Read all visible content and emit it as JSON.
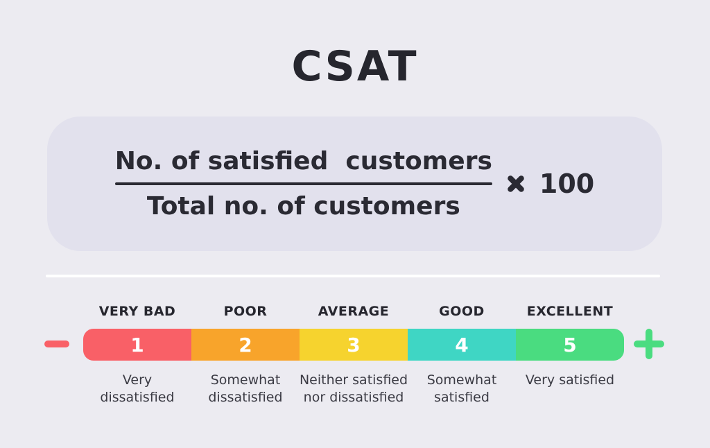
{
  "title": "CSAT",
  "formula": {
    "numerator": "No. of satisfied  customers",
    "denominator": "Total no. of customers",
    "multiply_sign": "×",
    "multiplier": "100"
  },
  "scale": {
    "levels": [
      {
        "label": "VERY BAD",
        "value": "1",
        "color": "#F96067",
        "description": "Very\ndissatisfied"
      },
      {
        "label": "POOR",
        "value": "2",
        "color": "#F8A42B",
        "description": "Somewhat\ndissatisfied"
      },
      {
        "label": "AVERAGE",
        "value": "3",
        "color": "#F6D32E",
        "description": "Neither satisfied\nnor dissatisfied"
      },
      {
        "label": "GOOD",
        "value": "4",
        "color": "#3FD6C4",
        "description": "Somewhat\nsatisfied"
      },
      {
        "label": "EXCELLENT",
        "value": "5",
        "color": "#4ADC80",
        "description": "Very satisfied"
      }
    ]
  },
  "colors": {
    "background": "#ECEBF1",
    "formula_box_bg": "#E2E1ED",
    "text_dark": "#2A2A33",
    "divider": "#FFFFFF",
    "minus": "#F96067",
    "plus": "#4ADC80"
  }
}
